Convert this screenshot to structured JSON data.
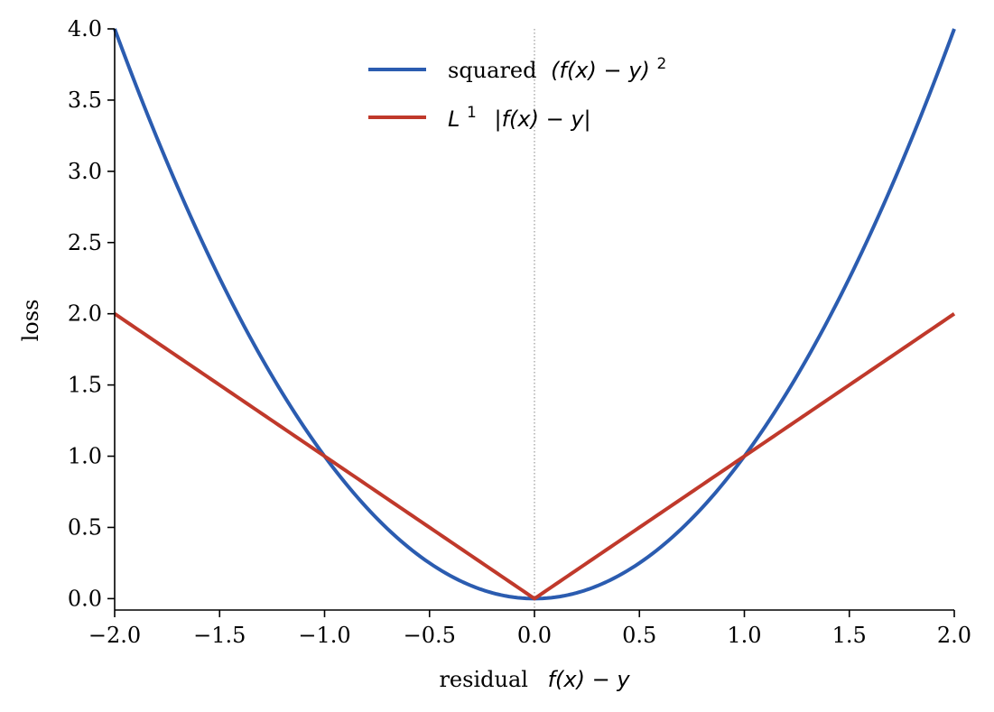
{
  "chart_data": {
    "type": "line",
    "xlabel_text": "residual",
    "xlabel_math": "f(x) − y",
    "ylabel": "loss",
    "xlim": [
      -2.0,
      2.0
    ],
    "ylim": [
      -0.08,
      4.0
    ],
    "x_ticks": [
      -2.0,
      -1.5,
      -1.0,
      -0.5,
      0.0,
      0.5,
      1.0,
      1.5,
      2.0
    ],
    "x_tick_labels": [
      "−2.0",
      "−1.5",
      "−1.0",
      "−0.5",
      "0.0",
      "0.5",
      "1.0",
      "1.5",
      "2.0"
    ],
    "y_ticks": [
      0.0,
      0.5,
      1.0,
      1.5,
      2.0,
      2.5,
      3.0,
      3.5,
      4.0
    ],
    "y_tick_labels": [
      "0.0",
      "0.5",
      "1.0",
      "1.5",
      "2.0",
      "2.5",
      "3.0",
      "3.5",
      "4.0"
    ],
    "grid": false,
    "legend_position": "top-center",
    "reference_line": {
      "x": 0.0,
      "style": "dotted",
      "color": "#999999"
    },
    "series": [
      {
        "name": "squared (f(x) − y)²",
        "label_prefix": "squared",
        "label_math": "(f(x) − y)",
        "label_sup": "2",
        "color": "#2b5cb0",
        "function": "square",
        "x": [
          -2.0,
          -1.75,
          -1.5,
          -1.25,
          -1.0,
          -0.75,
          -0.5,
          -0.25,
          0.0,
          0.25,
          0.5,
          0.75,
          1.0,
          1.25,
          1.5,
          1.75,
          2.0
        ],
        "y": [
          4.0,
          3.0625,
          2.25,
          1.5625,
          1.0,
          0.5625,
          0.25,
          0.0625,
          0.0,
          0.0625,
          0.25,
          0.5625,
          1.0,
          1.5625,
          2.25,
          3.0625,
          4.0
        ]
      },
      {
        "name": "L¹ |f(x) − y|",
        "label_L": "L",
        "label_sup": "1",
        "label_math": "|f(x) − y|",
        "color": "#c0392b",
        "function": "abs",
        "x": [
          -2.0,
          -1.0,
          0.0,
          1.0,
          2.0
        ],
        "y": [
          2.0,
          1.0,
          0.0,
          1.0,
          2.0
        ]
      }
    ]
  }
}
